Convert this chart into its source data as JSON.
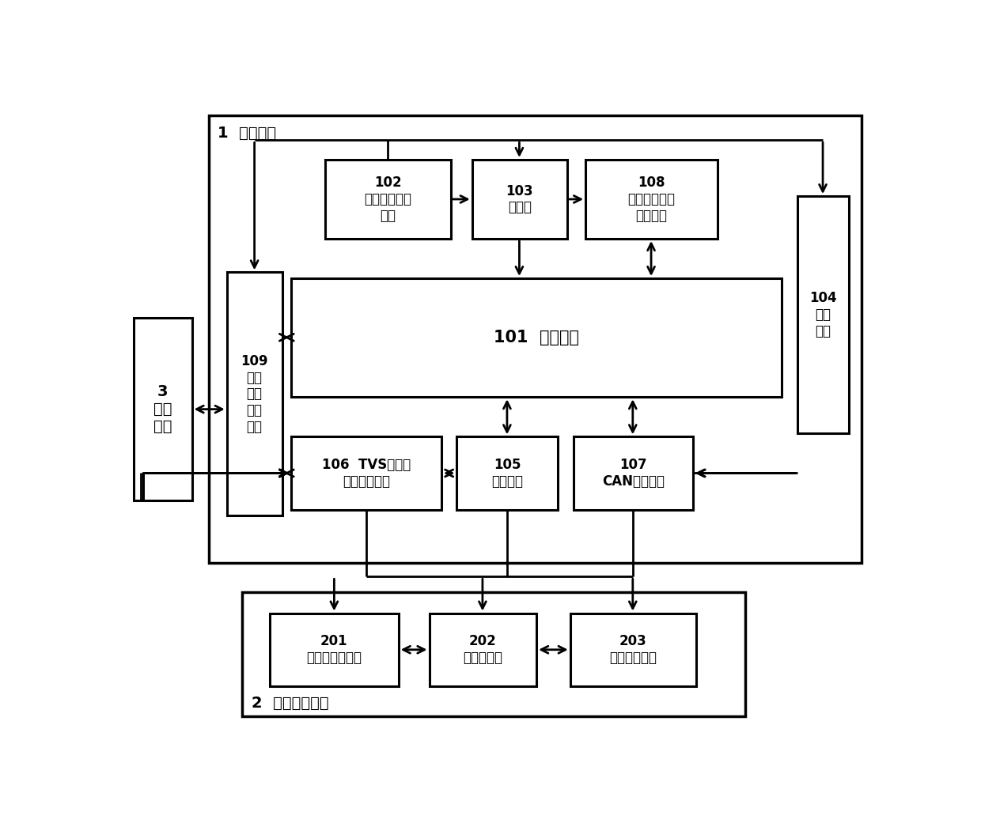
{
  "bg": "#ffffff",
  "lc": "#000000",
  "title1": "1  控制主板",
  "title2": "2  信息交互设备",
  "label_3": "3\n监控\n设备",
  "label_109": "109\n测控\n信号\n隔离\n模块",
  "label_102": "102\n电源接口保护\n电路",
  "label_103": "103\n主电源",
  "label_108": "108\n片外掉电数据\n保护模块",
  "label_104": "104\n隔离\n电源",
  "label_101": "101  主控芯片",
  "label_106": "106  TVS自恢复\n过载保护电路",
  "label_105": "105\n通讯模块",
  "label_107": "107\nCAN总线模块",
  "label_201": "201\n人机交互触摸屏",
  "label_202": "202\n外部计算机",
  "label_203": "203\n云平台数据库"
}
